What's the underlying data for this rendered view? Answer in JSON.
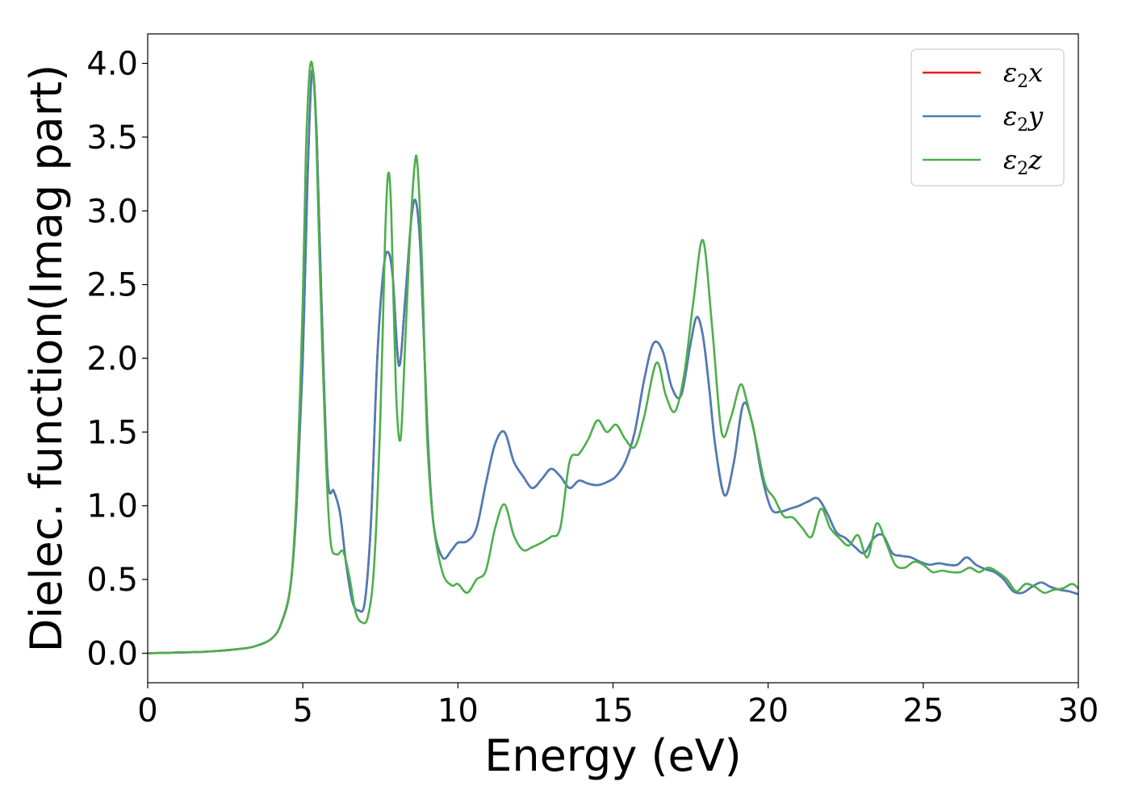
{
  "chart_data": {
    "type": "line",
    "xlabel": "Energy (eV)",
    "ylabel": "Dielec. function(Imag part)",
    "xlim": [
      0,
      30
    ],
    "ylim": [
      -0.2,
      4.2
    ],
    "xticks": [
      0,
      5,
      10,
      15,
      20,
      25,
      30
    ],
    "xtick_labels": [
      "0",
      "5",
      "10",
      "15",
      "20",
      "25",
      "30"
    ],
    "yticks": [
      0.0,
      0.5,
      1.0,
      1.5,
      2.0,
      2.5,
      3.0,
      3.5,
      4.0
    ],
    "ytick_labels": [
      "0.0",
      "0.5",
      "1.0",
      "1.5",
      "2.0",
      "2.5",
      "3.0",
      "3.5",
      "4.0"
    ],
    "grid": false,
    "legend_position": "top-right",
    "series": [
      {
        "name": "ε₂x",
        "legend_base": "ε",
        "legend_sub": "2",
        "legend_suffix": "x",
        "color": "#e41a1c",
        "x": [
          0,
          1,
          2,
          3,
          3.5,
          4,
          4.3,
          4.6,
          4.8,
          5.0,
          5.15,
          5.3,
          5.45,
          5.6,
          5.8,
          6.0,
          6.2,
          6.4,
          6.6,
          6.8,
          7.0,
          7.2,
          7.4,
          7.6,
          7.75,
          7.9,
          8.1,
          8.3,
          8.5,
          8.65,
          8.8,
          9.0,
          9.2,
          9.5,
          9.8,
          10.0,
          10.3,
          10.6,
          10.9,
          11.2,
          11.5,
          11.8,
          12.1,
          12.4,
          12.7,
          13.0,
          13.3,
          13.6,
          13.9,
          14.2,
          14.5,
          14.8,
          15.1,
          15.4,
          15.7,
          16.0,
          16.3,
          16.6,
          16.9,
          17.2,
          17.5,
          17.7,
          17.9,
          18.1,
          18.3,
          18.6,
          18.9,
          19.2,
          19.5,
          19.8,
          20.1,
          20.4,
          20.7,
          21.0,
          21.3,
          21.6,
          21.9,
          22.2,
          22.5,
          22.8,
          23.1,
          23.4,
          23.7,
          24.0,
          24.3,
          24.6,
          24.9,
          25.2,
          25.5,
          25.8,
          26.1,
          26.4,
          26.7,
          27.0,
          27.3,
          27.6,
          27.9,
          28.2,
          28.5,
          28.8,
          29.1,
          29.4,
          29.7,
          30.0
        ],
        "y": [
          0.0,
          0.005,
          0.012,
          0.03,
          0.05,
          0.1,
          0.2,
          0.45,
          1.0,
          2.0,
          3.2,
          3.95,
          3.5,
          2.4,
          1.2,
          1.1,
          0.95,
          0.6,
          0.35,
          0.29,
          0.35,
          0.9,
          2.0,
          2.6,
          2.72,
          2.55,
          1.95,
          2.4,
          2.95,
          3.06,
          2.7,
          1.6,
          0.9,
          0.65,
          0.7,
          0.75,
          0.76,
          0.85,
          1.15,
          1.42,
          1.5,
          1.3,
          1.2,
          1.12,
          1.18,
          1.25,
          1.2,
          1.12,
          1.17,
          1.15,
          1.14,
          1.16,
          1.2,
          1.3,
          1.5,
          1.85,
          2.1,
          2.05,
          1.8,
          1.75,
          2.1,
          2.28,
          2.15,
          1.8,
          1.4,
          1.07,
          1.3,
          1.69,
          1.55,
          1.2,
          0.98,
          0.96,
          0.98,
          1.0,
          1.03,
          1.05,
          0.95,
          0.82,
          0.78,
          0.72,
          0.68,
          0.78,
          0.8,
          0.68,
          0.66,
          0.65,
          0.62,
          0.6,
          0.61,
          0.6,
          0.6,
          0.65,
          0.6,
          0.57,
          0.55,
          0.5,
          0.42,
          0.41,
          0.45,
          0.48,
          0.45,
          0.43,
          0.42,
          0.4
        ]
      },
      {
        "name": "ε₂y",
        "legend_base": "ε",
        "legend_sub": "2",
        "legend_suffix": "y",
        "color": "#4a7eb8",
        "x": [
          0,
          1,
          2,
          3,
          3.5,
          4,
          4.3,
          4.6,
          4.8,
          5.0,
          5.15,
          5.3,
          5.45,
          5.6,
          5.8,
          6.0,
          6.2,
          6.4,
          6.6,
          6.8,
          7.0,
          7.2,
          7.4,
          7.6,
          7.75,
          7.9,
          8.1,
          8.3,
          8.5,
          8.65,
          8.8,
          9.0,
          9.2,
          9.5,
          9.8,
          10.0,
          10.3,
          10.6,
          10.9,
          11.2,
          11.5,
          11.8,
          12.1,
          12.4,
          12.7,
          13.0,
          13.3,
          13.6,
          13.9,
          14.2,
          14.5,
          14.8,
          15.1,
          15.4,
          15.7,
          16.0,
          16.3,
          16.6,
          16.9,
          17.2,
          17.5,
          17.7,
          17.9,
          18.1,
          18.3,
          18.6,
          18.9,
          19.2,
          19.5,
          19.8,
          20.1,
          20.4,
          20.7,
          21.0,
          21.3,
          21.6,
          21.9,
          22.2,
          22.5,
          22.8,
          23.1,
          23.4,
          23.7,
          24.0,
          24.3,
          24.6,
          24.9,
          25.2,
          25.5,
          25.8,
          26.1,
          26.4,
          26.7,
          27.0,
          27.3,
          27.6,
          27.9,
          28.2,
          28.5,
          28.8,
          29.1,
          29.4,
          29.7,
          30.0
        ],
        "y": [
          0.0,
          0.005,
          0.012,
          0.03,
          0.05,
          0.1,
          0.2,
          0.45,
          1.0,
          2.0,
          3.2,
          3.95,
          3.5,
          2.4,
          1.2,
          1.1,
          0.95,
          0.6,
          0.35,
          0.29,
          0.35,
          0.9,
          2.0,
          2.6,
          2.72,
          2.55,
          1.95,
          2.4,
          2.95,
          3.06,
          2.7,
          1.6,
          0.9,
          0.65,
          0.7,
          0.75,
          0.76,
          0.85,
          1.15,
          1.42,
          1.5,
          1.3,
          1.2,
          1.12,
          1.18,
          1.25,
          1.2,
          1.12,
          1.17,
          1.15,
          1.14,
          1.16,
          1.2,
          1.3,
          1.5,
          1.85,
          2.1,
          2.05,
          1.8,
          1.75,
          2.1,
          2.28,
          2.15,
          1.8,
          1.4,
          1.07,
          1.3,
          1.69,
          1.55,
          1.2,
          0.98,
          0.96,
          0.98,
          1.0,
          1.03,
          1.05,
          0.95,
          0.82,
          0.78,
          0.72,
          0.68,
          0.78,
          0.8,
          0.68,
          0.66,
          0.65,
          0.62,
          0.6,
          0.61,
          0.6,
          0.6,
          0.65,
          0.6,
          0.57,
          0.55,
          0.5,
          0.42,
          0.41,
          0.45,
          0.48,
          0.45,
          0.43,
          0.42,
          0.4
        ]
      },
      {
        "name": "ε₂z",
        "legend_base": "ε",
        "legend_sub": "2",
        "legend_suffix": "z",
        "color": "#4daf4a",
        "x": [
          0,
          1,
          2,
          3,
          3.5,
          4,
          4.3,
          4.6,
          4.8,
          5.0,
          5.1,
          5.25,
          5.4,
          5.55,
          5.75,
          5.9,
          6.1,
          6.3,
          6.5,
          6.7,
          6.9,
          7.1,
          7.3,
          7.5,
          7.65,
          7.75,
          7.85,
          8.0,
          8.15,
          8.3,
          8.45,
          8.6,
          8.7,
          8.85,
          9.0,
          9.2,
          9.5,
          9.8,
          10.0,
          10.3,
          10.6,
          10.9,
          11.2,
          11.5,
          11.8,
          12.1,
          12.4,
          12.7,
          13.0,
          13.3,
          13.6,
          13.9,
          14.2,
          14.5,
          14.8,
          15.1,
          15.4,
          15.7,
          16.0,
          16.4,
          16.7,
          17.0,
          17.3,
          17.6,
          17.9,
          18.2,
          18.5,
          18.8,
          19.1,
          19.3,
          19.6,
          19.9,
          20.2,
          20.5,
          20.8,
          21.1,
          21.4,
          21.7,
          22.0,
          22.3,
          22.6,
          22.9,
          23.2,
          23.5,
          23.8,
          24.1,
          24.4,
          24.7,
          25.0,
          25.3,
          25.6,
          25.9,
          26.2,
          26.5,
          26.8,
          27.1,
          27.4,
          27.7,
          28.0,
          28.3,
          28.6,
          28.9,
          29.2,
          29.5,
          29.8,
          30.0
        ],
        "y": [
          0.0,
          0.005,
          0.012,
          0.03,
          0.05,
          0.1,
          0.2,
          0.45,
          1.1,
          2.4,
          3.4,
          4.0,
          3.7,
          2.6,
          1.3,
          0.75,
          0.67,
          0.69,
          0.52,
          0.28,
          0.21,
          0.25,
          0.6,
          1.6,
          2.8,
          3.25,
          3.0,
          1.8,
          1.45,
          2.1,
          2.8,
          3.3,
          3.3,
          2.6,
          1.5,
          0.9,
          0.55,
          0.46,
          0.47,
          0.41,
          0.5,
          0.56,
          0.85,
          1.01,
          0.8,
          0.7,
          0.72,
          0.75,
          0.79,
          0.85,
          1.3,
          1.35,
          1.45,
          1.58,
          1.5,
          1.55,
          1.45,
          1.4,
          1.6,
          1.97,
          1.75,
          1.64,
          1.9,
          2.4,
          2.8,
          2.2,
          1.5,
          1.6,
          1.82,
          1.72,
          1.45,
          1.15,
          1.05,
          0.93,
          0.92,
          0.85,
          0.79,
          0.98,
          0.85,
          0.78,
          0.73,
          0.8,
          0.65,
          0.88,
          0.75,
          0.6,
          0.58,
          0.62,
          0.6,
          0.55,
          0.56,
          0.55,
          0.55,
          0.58,
          0.55,
          0.58,
          0.55,
          0.5,
          0.42,
          0.47,
          0.45,
          0.41,
          0.43,
          0.44,
          0.47,
          0.44
        ]
      }
    ]
  }
}
